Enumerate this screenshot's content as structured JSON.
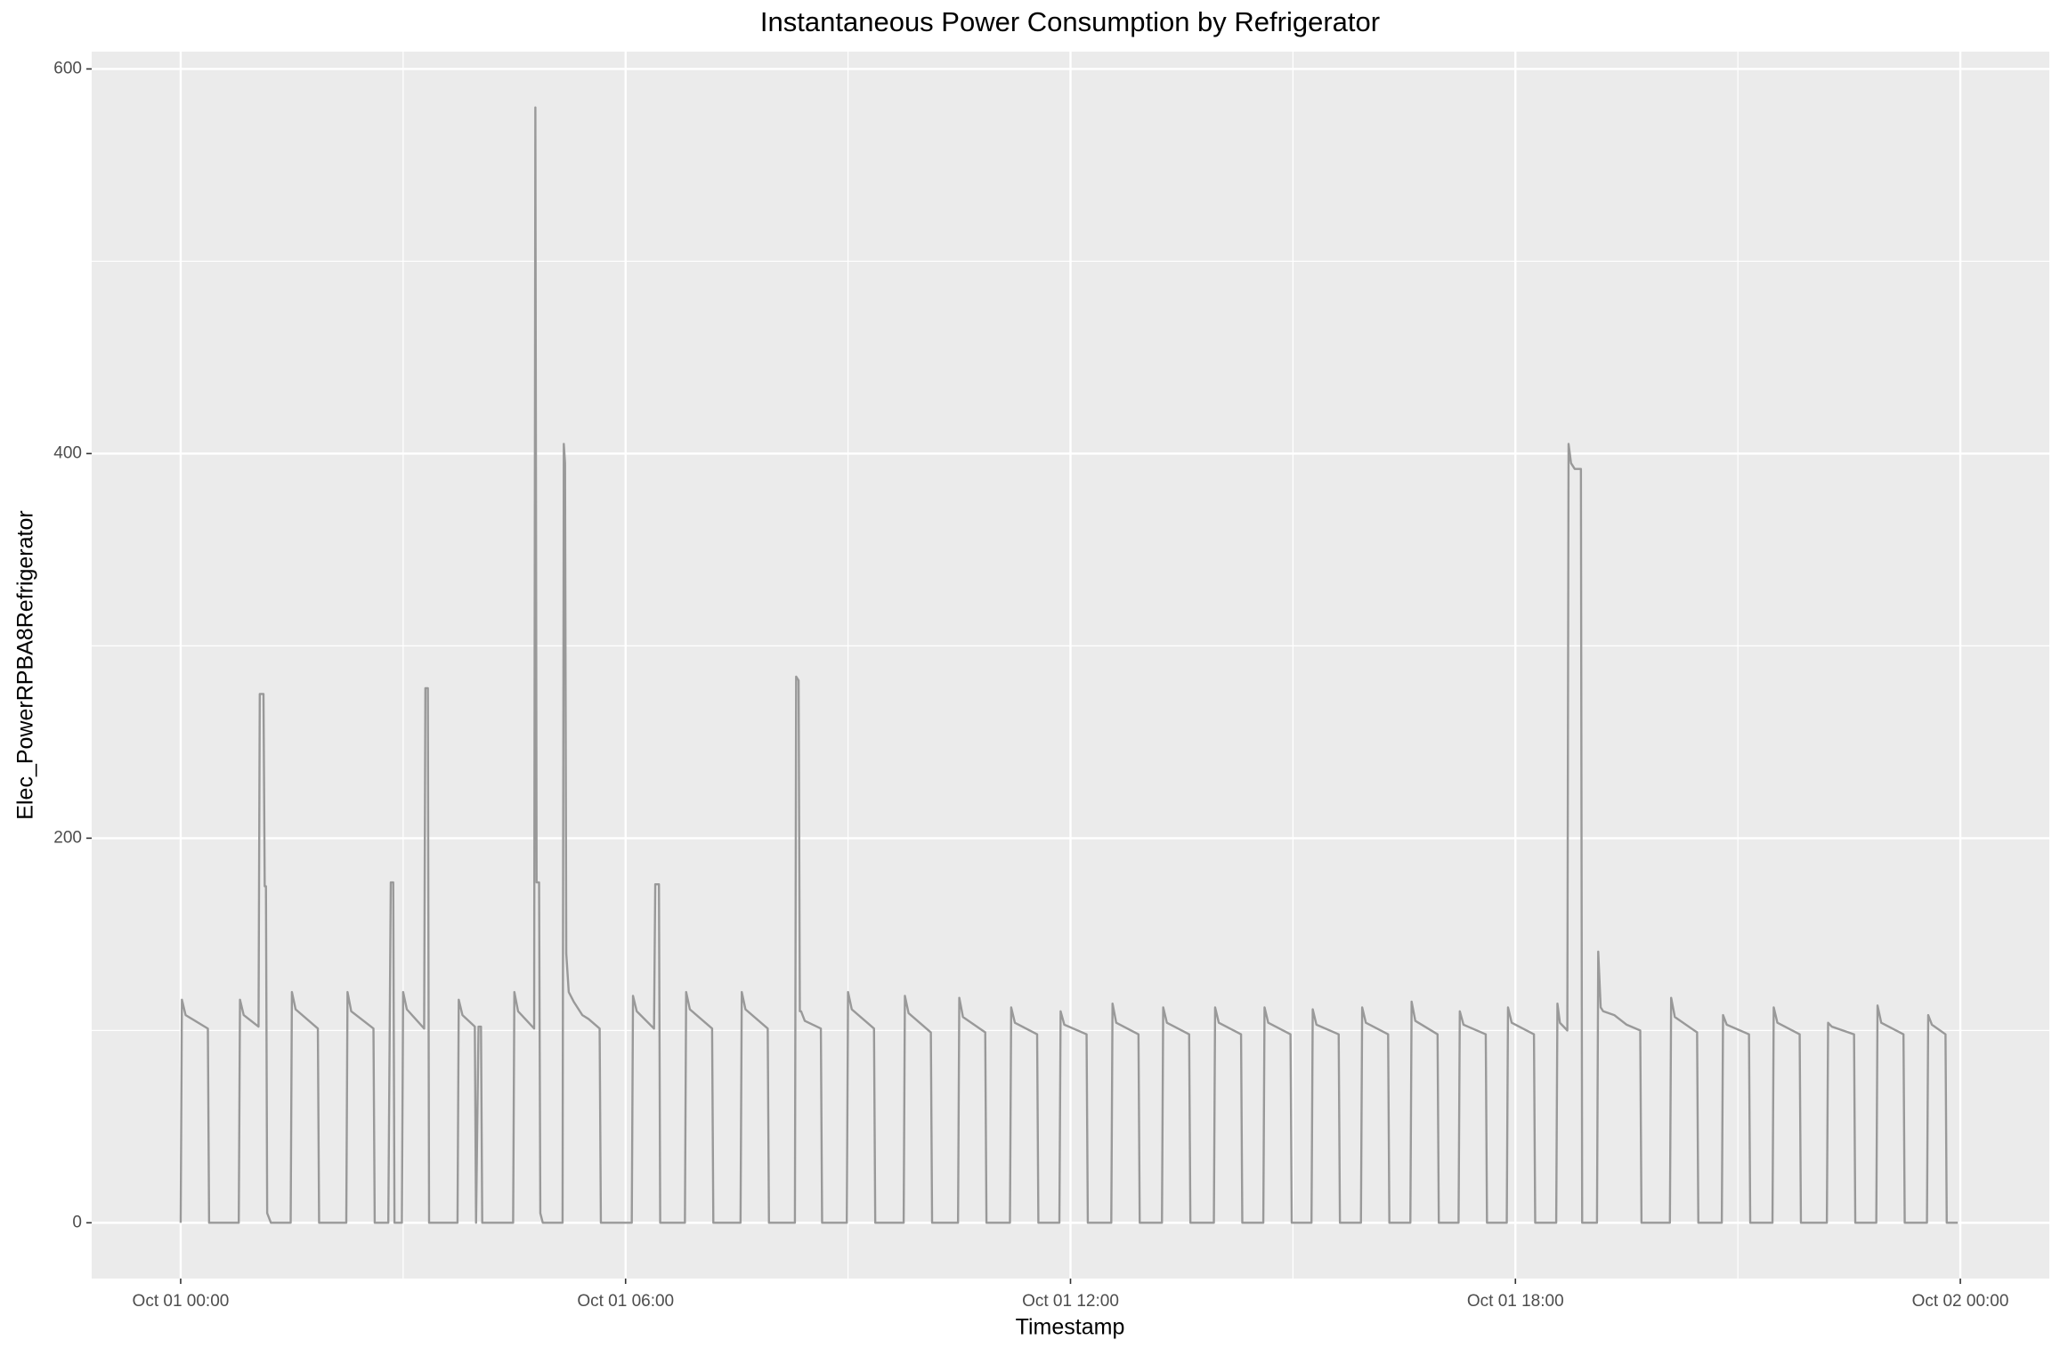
{
  "chart_data": {
    "type": "line",
    "title": "Instantaneous Power Consumption by Refrigerator",
    "x_label": "Timestamp",
    "y_label": "Elec_PowerRPBA8Refrigerator",
    "color": "#999999",
    "grid": true,
    "xlim": [
      "Oct 01 00:00",
      "Oct 02 00:00"
    ],
    "xticks": [
      "Oct 01 00:00",
      "Oct 01 06:00",
      "Oct 01 12:00",
      "Oct 01 18:00",
      "Oct 02 00:00"
    ],
    "minor_xticks": [
      "Oct 01 03:00",
      "Oct 01 09:00",
      "Oct 01 15:00",
      "Oct 01 21:00"
    ],
    "ylim": [
      -29,
      609
    ],
    "yticks": [
      0,
      200,
      400,
      600
    ],
    "minor_yticks": [
      100,
      300,
      500
    ],
    "x": [
      "Oct 01 00:00",
      "Oct 01 00:01",
      "Oct 01 00:04",
      "Oct 01 00:22",
      "Oct 01 00:23",
      "Oct 01 00:47",
      "Oct 01 00:48",
      "Oct 01 00:51",
      "Oct 01 01:03",
      "Oct 01 01:04",
      "Oct 01 01:07",
      "Oct 01 01:08",
      "Oct 01 01:09",
      "Oct 01 01:10",
      "Oct 01 01:13",
      "Oct 01 01:29",
      "Oct 01 01:30",
      "Oct 01 01:33",
      "Oct 01 01:51",
      "Oct 01 01:52",
      "Oct 01 02:14",
      "Oct 01 02:15",
      "Oct 01 02:18",
      "Oct 01 02:36",
      "Oct 01 02:37",
      "Oct 01 02:48",
      "Oct 01 02:50",
      "Oct 01 02:52",
      "Oct 01 02:53",
      "Oct 01 02:59",
      "Oct 01 03:00",
      "Oct 01 03:03",
      "Oct 01 03:17",
      "Oct 01 03:18",
      "Oct 01 03:20",
      "Oct 01 03:21",
      "Oct 01 03:44",
      "Oct 01 03:45",
      "Oct 01 03:48",
      "Oct 01 03:58",
      "Oct 01 03:59",
      "Oct 01 04:01",
      "Oct 01 04:03",
      "Oct 01 04:04",
      "Oct 01 04:29",
      "Oct 01 04:30",
      "Oct 01 04:33",
      "Oct 01 04:46",
      "Oct 01 04:47",
      "Oct 01 04:48",
      "Oct 01 04:50",
      "Oct 01 04:51",
      "Oct 01 04:53",
      "Oct 01 05:09",
      "Oct 01 05:10",
      "Oct 01 05:11",
      "Oct 01 05:12",
      "Oct 01 05:14",
      "Oct 01 05:18",
      "Oct 01 05:25",
      "Oct 01 05:30",
      "Oct 01 05:39",
      "Oct 01 05:40",
      "Oct 01 06:05",
      "Oct 01 06:06",
      "Oct 01 06:09",
      "Oct 01 06:23",
      "Oct 01 06:24",
      "Oct 01 06:27",
      "Oct 01 06:28",
      "Oct 01 06:48",
      "Oct 01 06:49",
      "Oct 01 06:52",
      "Oct 01 07:10",
      "Oct 01 07:11",
      "Oct 01 07:33",
      "Oct 01 07:34",
      "Oct 01 07:37",
      "Oct 01 07:55",
      "Oct 01 07:56",
      "Oct 01 08:17",
      "Oct 01 08:18",
      "Oct 01 08:20",
      "Oct 01 08:21",
      "Oct 01 08:22",
      "Oct 01 08:25",
      "Oct 01 08:38",
      "Oct 01 08:39",
      "Oct 01 08:59",
      "Oct 01 09:00",
      "Oct 01 09:03",
      "Oct 01 09:21",
      "Oct 01 09:22",
      "Oct 01 09:45",
      "Oct 01 09:46",
      "Oct 01 09:49",
      "Oct 01 10:07",
      "Oct 01 10:08",
      "Oct 01 10:29",
      "Oct 01 10:30",
      "Oct 01 10:33",
      "Oct 01 10:51",
      "Oct 01 10:52",
      "Oct 01 11:11",
      "Oct 01 11:12",
      "Oct 01 11:15",
      "Oct 01 11:33",
      "Oct 01 11:34",
      "Oct 01 11:51",
      "Oct 01 11:52",
      "Oct 01 11:55",
      "Oct 01 12:13",
      "Oct 01 12:14",
      "Oct 01 12:33",
      "Oct 01 12:34",
      "Oct 01 12:37",
      "Oct 01 12:55",
      "Oct 01 12:56",
      "Oct 01 13:14",
      "Oct 01 13:15",
      "Oct 01 13:18",
      "Oct 01 13:36",
      "Oct 01 13:37",
      "Oct 01 13:56",
      "Oct 01 13:57",
      "Oct 01 14:00",
      "Oct 01 14:18",
      "Oct 01 14:19",
      "Oct 01 14:36",
      "Oct 01 14:37",
      "Oct 01 14:40",
      "Oct 01 14:58",
      "Oct 01 14:59",
      "Oct 01 15:15",
      "Oct 01 15:16",
      "Oct 01 15:19",
      "Oct 01 15:37",
      "Oct 01 15:38",
      "Oct 01 15:55",
      "Oct 01 15:56",
      "Oct 01 15:59",
      "Oct 01 16:17",
      "Oct 01 16:18",
      "Oct 01 16:35",
      "Oct 01 16:36",
      "Oct 01 16:39",
      "Oct 01 16:57",
      "Oct 01 16:58",
      "Oct 01 17:14",
      "Oct 01 17:15",
      "Oct 01 17:18",
      "Oct 01 17:36",
      "Oct 01 17:37",
      "Oct 01 17:53",
      "Oct 01 17:54",
      "Oct 01 17:57",
      "Oct 01 18:15",
      "Oct 01 18:16",
      "Oct 01 18:33",
      "Oct 01 18:34",
      "Oct 01 18:36",
      "Oct 01 18:42",
      "Oct 01 18:43",
      "Oct 01 18:45",
      "Oct 01 18:48",
      "Oct 01 18:53",
      "Oct 01 18:54",
      "Oct 01 19:06",
      "Oct 01 19:07",
      "Oct 01 19:09",
      "Oct 01 19:11",
      "Oct 01 19:20",
      "Oct 01 19:30",
      "Oct 01 19:41",
      "Oct 01 19:42",
      "Oct 01 20:05",
      "Oct 01 20:06",
      "Oct 01 20:09",
      "Oct 01 20:27",
      "Oct 01 20:28",
      "Oct 01 20:47",
      "Oct 01 20:48",
      "Oct 01 20:51",
      "Oct 01 21:09",
      "Oct 01 21:10",
      "Oct 01 21:28",
      "Oct 01 21:29",
      "Oct 01 21:32",
      "Oct 01 21:50",
      "Oct 01 21:51",
      "Oct 01 22:12",
      "Oct 01 22:13",
      "Oct 01 22:16",
      "Oct 01 22:34",
      "Oct 01 22:35",
      "Oct 01 22:52",
      "Oct 01 22:53",
      "Oct 01 22:56",
      "Oct 01 23:14",
      "Oct 01 23:15",
      "Oct 01 23:33",
      "Oct 01 23:34",
      "Oct 01 23:37",
      "Oct 01 23:48",
      "Oct 01 23:49",
      "Oct 01 23:58"
    ],
    "values": [
      0,
      116,
      108,
      101,
      0,
      0,
      116,
      108,
      102,
      275,
      275,
      175,
      175,
      5,
      0,
      0,
      120,
      111,
      101,
      0,
      0,
      120,
      110,
      101,
      0,
      0,
      177,
      177,
      0,
      0,
      120,
      111,
      101,
      278,
      278,
      0,
      0,
      116,
      108,
      102,
      0,
      102,
      102,
      0,
      0,
      120,
      110,
      101,
      580,
      177,
      177,
      5,
      0,
      0,
      405,
      395,
      140,
      120,
      115,
      108,
      106,
      101,
      0,
      0,
      118,
      110,
      101,
      176,
      176,
      0,
      0,
      120,
      111,
      101,
      0,
      0,
      120,
      111,
      101,
      0,
      0,
      284,
      282,
      110,
      110,
      105,
      101,
      0,
      0,
      120,
      111,
      101,
      0,
      0,
      118,
      109,
      99,
      0,
      0,
      117,
      107,
      99,
      0,
      0,
      112,
      104,
      98,
      0,
      0,
      110,
      103,
      98,
      0,
      0,
      114,
      104,
      98,
      0,
      0,
      112,
      104,
      98,
      0,
      0,
      112,
      104,
      98,
      0,
      0,
      112,
      104,
      98,
      0,
      0,
      111,
      103,
      98,
      0,
      0,
      112,
      104,
      98,
      0,
      0,
      115,
      105,
      98,
      0,
      0,
      110,
      103,
      98,
      0,
      0,
      112,
      104,
      98,
      0,
      0,
      114,
      104,
      100,
      405,
      395,
      392,
      392,
      0,
      0,
      141,
      112,
      110,
      108,
      103,
      100,
      0,
      0,
      117,
      107,
      99,
      0,
      0,
      108,
      103,
      98,
      0,
      0,
      112,
      104,
      98,
      0,
      0,
      104,
      102,
      98,
      0,
      0,
      113,
      104,
      98,
      0,
      0,
      108,
      103,
      98,
      0,
      0
    ]
  }
}
